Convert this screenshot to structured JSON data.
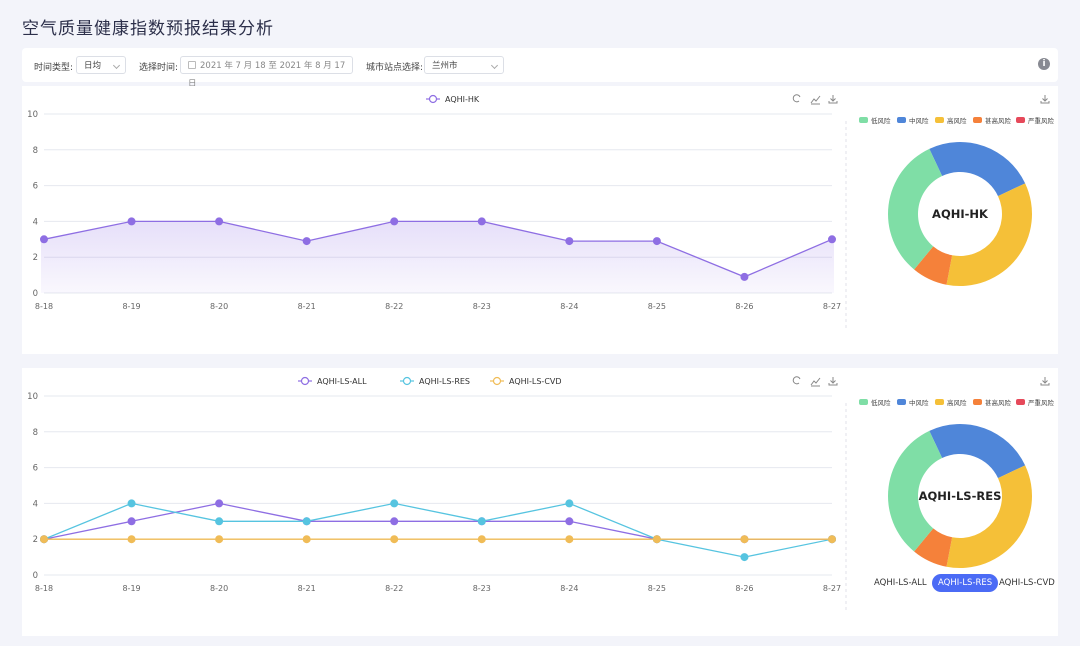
{
  "page": {
    "title": "空气质量健康指数预报结果分析"
  },
  "filters": {
    "time_type_label": "时间类型:",
    "time_type_value": "日均",
    "select_time_label": "选择时间:",
    "date_value": "2021 年 7 月 18  至 2021 年 8 月 17 日",
    "city_label": "城市站点选择:",
    "city_value": "兰州市",
    "info_icon": "i"
  },
  "colors": {
    "hk": "#8e6ee3",
    "all": "#8e6ee3",
    "res": "#56c4e0",
    "cvd": "#f0bc57",
    "risk_low": "#7fdea6",
    "risk_mid": "#4f86d9",
    "risk_high": "#f5c038",
    "risk_vhigh": "#f5813a",
    "risk_severe": "#e6495a",
    "tab_active": "#4b6bf5"
  },
  "risk_legend": [
    "低风险",
    "中风险",
    "高风险",
    "甚高风险",
    "严重风险"
  ],
  "toolbar_icons": [
    "refresh-icon",
    "line-chart-icon",
    "download-icon"
  ],
  "chart_data": [
    {
      "type": "line",
      "legend": [
        "AQHI-HK"
      ],
      "x": [
        "8-18",
        "8-19",
        "8-20",
        "8-21",
        "8-22",
        "8-23",
        "8-24",
        "8-25",
        "8-26",
        "8-27"
      ],
      "series": [
        {
          "name": "AQHI-HK",
          "values": [
            3,
            4,
            4,
            2.9,
            4,
            4,
            2.9,
            2.9,
            0.9,
            3
          ],
          "area": true
        }
      ],
      "ylim": [
        0,
        10
      ],
      "yticks": [
        0,
        2,
        4,
        6,
        8,
        10
      ],
      "grid": true
    },
    {
      "type": "pie",
      "center_label": "AQHI-HK",
      "slices": [
        {
          "name": "中风险",
          "value": 25
        },
        {
          "name": "高风险",
          "value": 35
        },
        {
          "name": "甚高风险",
          "value": 8
        },
        {
          "name": "低风险",
          "value": 32
        }
      ],
      "legend": [
        "低风险",
        "中风险",
        "高风险",
        "甚高风险",
        "严重风险"
      ]
    },
    {
      "type": "line",
      "legend": [
        "AQHI-LS-ALL",
        "AQHI-LS-RES",
        "AQHI-LS-CVD"
      ],
      "x": [
        "8-18",
        "8-19",
        "8-20",
        "8-21",
        "8-22",
        "8-23",
        "8-24",
        "8-25",
        "8-26",
        "8-27"
      ],
      "series": [
        {
          "name": "AQHI-LS-ALL",
          "values": [
            2,
            3,
            4,
            3,
            3,
            3,
            3,
            2,
            2,
            2
          ]
        },
        {
          "name": "AQHI-LS-RES",
          "values": [
            2,
            4,
            3,
            3,
            4,
            3,
            4,
            2,
            1,
            2
          ]
        },
        {
          "name": "AQHI-LS-CVD",
          "values": [
            2,
            2,
            2,
            2,
            2,
            2,
            2,
            2,
            2,
            2
          ]
        }
      ],
      "ylim": [
        0,
        10
      ],
      "yticks": [
        0,
        2,
        4,
        6,
        8,
        10
      ],
      "grid": true
    },
    {
      "type": "pie",
      "center_label": "AQHI-LS-RES",
      "slices": [
        {
          "name": "中风险",
          "value": 25
        },
        {
          "name": "高风险",
          "value": 35
        },
        {
          "name": "甚高风险",
          "value": 8
        },
        {
          "name": "低风险",
          "value": 32
        }
      ],
      "legend": [
        "低风险",
        "中风险",
        "高风险",
        "甚高风险",
        "严重风险"
      ]
    }
  ],
  "tabs": [
    "AQHI-LS-ALL",
    "AQHI-LS-RES",
    "AQHI-LS-CVD"
  ]
}
